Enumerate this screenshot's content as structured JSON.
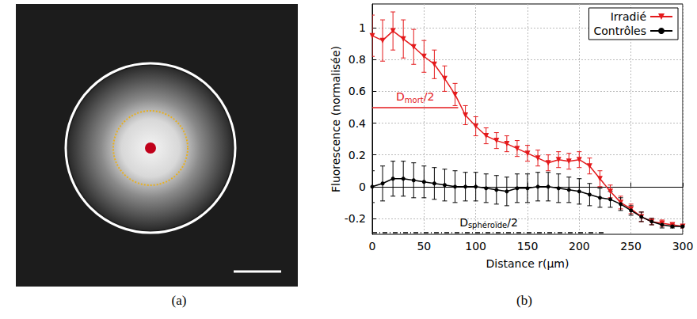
{
  "panel_labels": [
    "(a)",
    "(b)"
  ],
  "chart_data": {
    "type": "line",
    "x_label": "Distance r(µm)",
    "y_label": "Fluorescence (normalisée)",
    "x": [
      0,
      10,
      20,
      30,
      40,
      50,
      60,
      70,
      80,
      90,
      100,
      110,
      120,
      130,
      140,
      150,
      160,
      170,
      180,
      190,
      200,
      210,
      220,
      230,
      240,
      250,
      260,
      270,
      280,
      290,
      300
    ],
    "series": [
      {
        "name": "Irradié",
        "color": "#e41a1c",
        "marker": "triangle-down",
        "values": [
          0.95,
          0.92,
          0.98,
          0.93,
          0.88,
          0.82,
          0.77,
          0.68,
          0.58,
          0.45,
          0.38,
          0.32,
          0.29,
          0.27,
          0.24,
          0.21,
          0.18,
          0.15,
          0.17,
          0.16,
          0.17,
          0.13,
          0.05,
          -0.03,
          -0.1,
          -0.14,
          -0.19,
          -0.22,
          -0.23,
          -0.24,
          -0.25
        ],
        "errors": [
          0.13,
          0.13,
          0.12,
          0.12,
          0.11,
          0.1,
          0.09,
          0.08,
          0.07,
          0.06,
          0.06,
          0.05,
          0.05,
          0.05,
          0.05,
          0.05,
          0.05,
          0.05,
          0.05,
          0.05,
          0.05,
          0.05,
          0.05,
          0.04,
          0.04,
          0.03,
          0.03,
          0.02,
          0.02,
          0.01,
          0.01
        ]
      },
      {
        "name": "Contrôles",
        "color": "#000000",
        "marker": "circle",
        "values": [
          0,
          0.02,
          0.05,
          0.05,
          0.04,
          0.03,
          0.02,
          0.01,
          0,
          0,
          0,
          -0.01,
          -0.02,
          -0.03,
          -0.01,
          -0.01,
          0,
          0,
          -0.01,
          -0.02,
          -0.03,
          -0.05,
          -0.07,
          -0.08,
          -0.11,
          -0.15,
          -0.19,
          -0.22,
          -0.24,
          -0.25,
          -0.25
        ],
        "errors": [
          0.1,
          0.11,
          0.11,
          0.11,
          0.11,
          0.1,
          0.1,
          0.1,
          0.1,
          0.09,
          0.09,
          0.09,
          0.09,
          0.09,
          0.09,
          0.09,
          0.09,
          0.09,
          0.09,
          0.08,
          0.08,
          0.07,
          0.06,
          0.05,
          0.04,
          0.03,
          0.03,
          0.02,
          0.02,
          0.01,
          0.01
        ]
      }
    ],
    "xlim": [
      0,
      300
    ],
    "xticks": [
      0,
      50,
      100,
      150,
      200,
      250,
      300
    ],
    "ylim": [
      -0.3,
      1.15
    ],
    "yticks": [
      -0.2,
      0,
      0.2,
      0.4,
      0.6,
      0.8,
      1
    ],
    "grid": true,
    "legend": "upper right",
    "annotations": [
      {
        "text": "D",
        "subscript": "mort",
        "text_after": "/2",
        "x": [
          0,
          83
        ],
        "y": 0.5,
        "color": "#e41a1c",
        "line_style": "solid"
      },
      {
        "text": "D",
        "subscript": "sphéroïde",
        "text_after": "/2",
        "x": [
          0,
          225
        ],
        "y": -0.29,
        "color": "#000000",
        "line_style": "dashdot"
      }
    ]
  }
}
